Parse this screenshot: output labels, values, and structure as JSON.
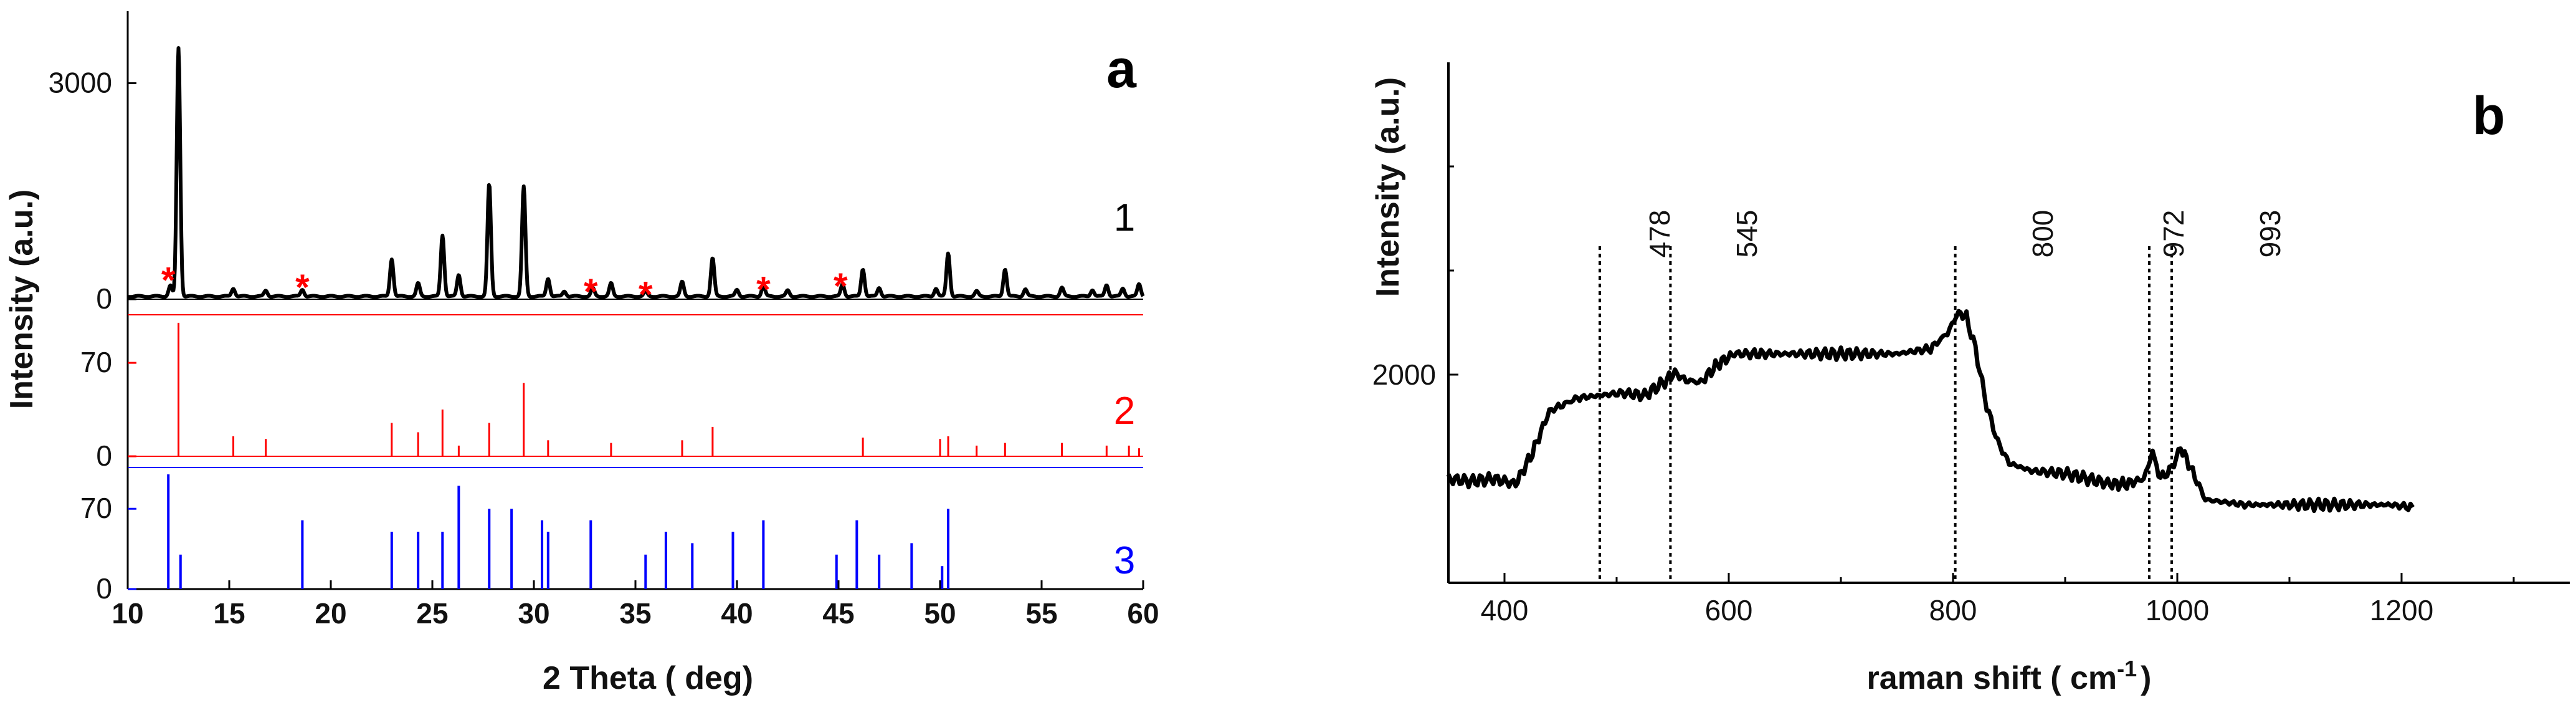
{
  "chart_data": [
    {
      "panel": "a",
      "type": "line",
      "xlabel": "2 Theta ( deg)",
      "ylabel": "Intensity (a.u.)",
      "xlim": [
        10,
        60
      ],
      "xticks": [
        10,
        15,
        20,
        25,
        30,
        35,
        40,
        45,
        50,
        55,
        60
      ],
      "series": [
        {
          "label_number": "1",
          "color": "#000000",
          "ylim": [
            0,
            4000
          ],
          "yticks": [
            0,
            3000
          ],
          "baseline": 40,
          "peaks": [
            {
              "x": 12.1,
              "y": 150
            },
            {
              "x": 12.5,
              "y": 3450
            },
            {
              "x": 15.2,
              "y": 110
            },
            {
              "x": 16.8,
              "y": 80
            },
            {
              "x": 18.6,
              "y": 95
            },
            {
              "x": 23.0,
              "y": 520
            },
            {
              "x": 24.3,
              "y": 180
            },
            {
              "x": 25.5,
              "y": 850
            },
            {
              "x": 26.3,
              "y": 300
            },
            {
              "x": 27.8,
              "y": 1560
            },
            {
              "x": 29.5,
              "y": 1520
            },
            {
              "x": 30.7,
              "y": 250
            },
            {
              "x": 31.5,
              "y": 70
            },
            {
              "x": 32.9,
              "y": 110
            },
            {
              "x": 33.8,
              "y": 180
            },
            {
              "x": 35.5,
              "y": 70
            },
            {
              "x": 37.3,
              "y": 200
            },
            {
              "x": 38.8,
              "y": 530
            },
            {
              "x": 40.0,
              "y": 90
            },
            {
              "x": 41.3,
              "y": 150
            },
            {
              "x": 42.5,
              "y": 80
            },
            {
              "x": 45.2,
              "y": 170
            },
            {
              "x": 46.2,
              "y": 380
            },
            {
              "x": 47.0,
              "y": 120
            },
            {
              "x": 49.8,
              "y": 110
            },
            {
              "x": 50.4,
              "y": 600
            },
            {
              "x": 51.8,
              "y": 70
            },
            {
              "x": 53.2,
              "y": 380
            },
            {
              "x": 54.2,
              "y": 100
            },
            {
              "x": 56.0,
              "y": 120
            },
            {
              "x": 57.5,
              "y": 90
            },
            {
              "x": 58.2,
              "y": 160
            },
            {
              "x": 59.0,
              "y": 110
            },
            {
              "x": 59.8,
              "y": 170
            }
          ],
          "asterisks": [
            {
              "x": 12.0,
              "y": 350
            },
            {
              "x": 18.6,
              "y": 250
            },
            {
              "x": 32.8,
              "y": 190
            },
            {
              "x": 35.5,
              "y": 150
            },
            {
              "x": 41.3,
              "y": 220
            },
            {
              "x": 45.1,
              "y": 270
            }
          ],
          "asterisk_color": "#ff0000"
        },
        {
          "label_number": "2",
          "color": "#ff0000",
          "ylim": [
            0,
            106
          ],
          "yticks": [
            0,
            70
          ],
          "sticks": [
            {
              "x": 12.5,
              "y": 100
            },
            {
              "x": 15.2,
              "y": 15
            },
            {
              "x": 16.8,
              "y": 13
            },
            {
              "x": 23.0,
              "y": 25
            },
            {
              "x": 24.3,
              "y": 18
            },
            {
              "x": 25.5,
              "y": 35
            },
            {
              "x": 26.3,
              "y": 8
            },
            {
              "x": 27.8,
              "y": 25
            },
            {
              "x": 29.5,
              "y": 55
            },
            {
              "x": 30.7,
              "y": 12
            },
            {
              "x": 33.8,
              "y": 10
            },
            {
              "x": 37.3,
              "y": 12
            },
            {
              "x": 38.8,
              "y": 22
            },
            {
              "x": 46.2,
              "y": 14
            },
            {
              "x": 50.0,
              "y": 13
            },
            {
              "x": 50.4,
              "y": 15
            },
            {
              "x": 51.8,
              "y": 8
            },
            {
              "x": 53.2,
              "y": 10
            },
            {
              "x": 56.0,
              "y": 10
            },
            {
              "x": 58.2,
              "y": 8
            },
            {
              "x": 59.3,
              "y": 8
            },
            {
              "x": 59.8,
              "y": 6
            }
          ]
        },
        {
          "label_number": "3",
          "color": "#0000ff",
          "ylim": [
            0,
            106
          ],
          "yticks": [
            0,
            70
          ],
          "sticks": [
            {
              "x": 12.0,
              "y": 100
            },
            {
              "x": 12.6,
              "y": 30
            },
            {
              "x": 18.6,
              "y": 60
            },
            {
              "x": 23.0,
              "y": 50
            },
            {
              "x": 24.3,
              "y": 50
            },
            {
              "x": 25.5,
              "y": 50
            },
            {
              "x": 26.3,
              "y": 90
            },
            {
              "x": 27.8,
              "y": 70
            },
            {
              "x": 28.9,
              "y": 70
            },
            {
              "x": 30.4,
              "y": 60
            },
            {
              "x": 30.7,
              "y": 50
            },
            {
              "x": 32.8,
              "y": 60
            },
            {
              "x": 35.5,
              "y": 30
            },
            {
              "x": 36.5,
              "y": 50
            },
            {
              "x": 37.8,
              "y": 40
            },
            {
              "x": 39.8,
              "y": 50
            },
            {
              "x": 41.3,
              "y": 60
            },
            {
              "x": 44.9,
              "y": 30
            },
            {
              "x": 45.9,
              "y": 60
            },
            {
              "x": 47.0,
              "y": 30
            },
            {
              "x": 48.6,
              "y": 40
            },
            {
              "x": 50.1,
              "y": 20
            },
            {
              "x": 50.4,
              "y": 70
            }
          ]
        }
      ]
    },
    {
      "panel": "b",
      "type": "line",
      "xlabel": "raman shift ( cm",
      "xlabel_superscript": "-1",
      "xlabel_suffix": ")",
      "ylabel": "Intensity (a.u.)",
      "xlim": [
        350,
        1350
      ],
      "ylim": [
        1600,
        2600
      ],
      "xticks": [
        400,
        600,
        800,
        1000,
        1200
      ],
      "yticks": [
        2000
      ],
      "series": [
        {
          "color": "#000000",
          "x": [
            350,
            370,
            390,
            410,
            425,
            440,
            450,
            465,
            485,
            505,
            525,
            545,
            552,
            560,
            575,
            590,
            605,
            625,
            650,
            700,
            750,
            780,
            795,
            805,
            812,
            820,
            830,
            840,
            850,
            870,
            900,
            940,
            955,
            970,
            978,
            985,
            995,
            1003,
            1010,
            1025,
            1060,
            1100,
            1150,
            1190,
            1210
          ],
          "y": [
            1800,
            1795,
            1800,
            1790,
            1850,
            1930,
            1940,
            1955,
            1960,
            1965,
            1960,
            1990,
            2005,
            1990,
            1985,
            2020,
            2040,
            2040,
            2040,
            2040,
            2040,
            2050,
            2080,
            2120,
            2110,
            2050,
            1940,
            1870,
            1830,
            1815,
            1810,
            1790,
            1790,
            1800,
            1850,
            1800,
            1820,
            1860,
            1830,
            1760,
            1750,
            1750,
            1750,
            1750,
            1745
          ]
        }
      ],
      "markers": [
        {
          "x": 485,
          "label": ""
        },
        {
          "x": 548,
          "label": "478"
        },
        {
          "x": 802,
          "label": "800"
        },
        {
          "x": 975,
          "label": "972"
        },
        {
          "x": 995,
          "label": "993"
        }
      ],
      "extra_peak_labels": [
        {
          "x": 548,
          "label": "545"
        }
      ]
    }
  ]
}
